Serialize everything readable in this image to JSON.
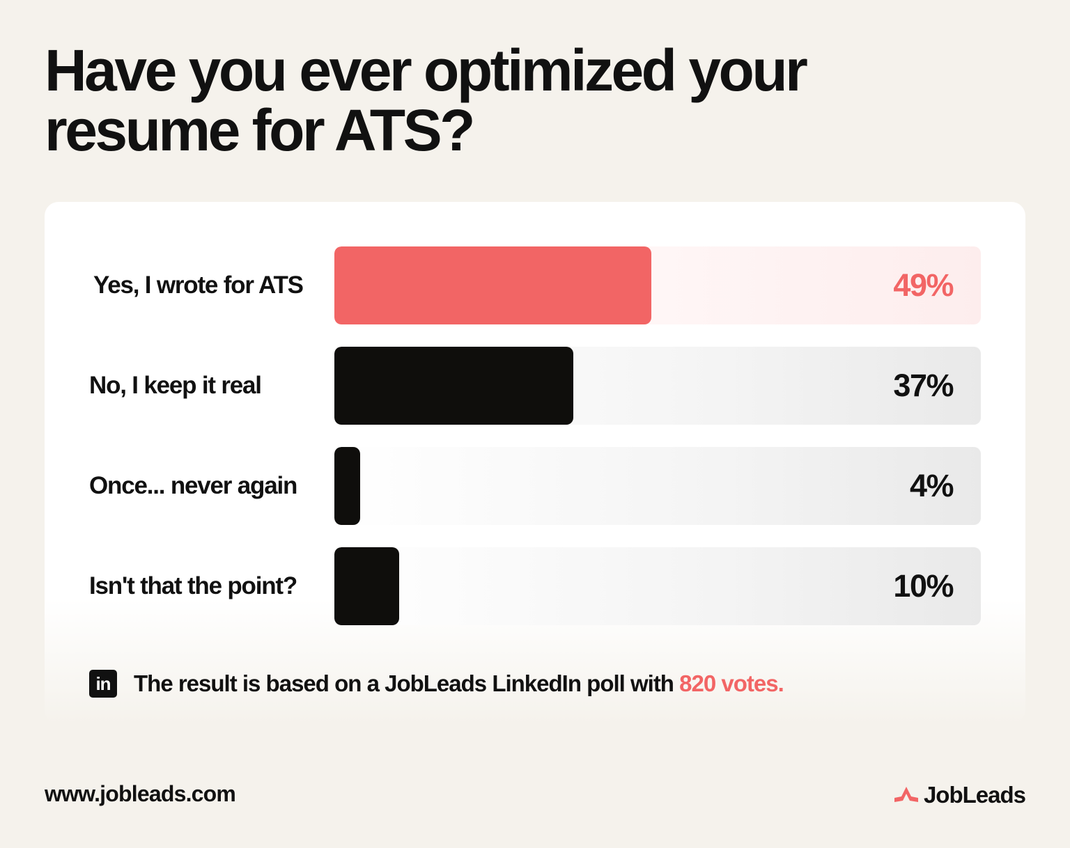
{
  "chart_data": {
    "type": "bar",
    "orientation": "horizontal",
    "title": "Have you ever optimized your resume for ATS?",
    "categories": [
      "Yes, I wrote for ATS",
      "No, I keep it real",
      "Once... never again",
      "Isn't that the point?"
    ],
    "values": [
      49,
      37,
      4,
      10
    ],
    "value_labels": [
      "49%",
      "37%",
      "4%",
      "10%"
    ],
    "unit": "%",
    "xlim": [
      0,
      100
    ],
    "grid": false,
    "highlight_index": 0,
    "colors": {
      "highlight": "#f26565",
      "default": "#0f0e0c"
    }
  },
  "footnote": {
    "icon": "linkedin-icon",
    "icon_text": "in",
    "text": "The result is based on a JobLeads LinkedIn poll with ",
    "highlight": "820 votes."
  },
  "footer": {
    "website": "www.jobleads.com",
    "brand_icon": "jobleads-logo-icon",
    "brand_name": "JobLeads"
  }
}
